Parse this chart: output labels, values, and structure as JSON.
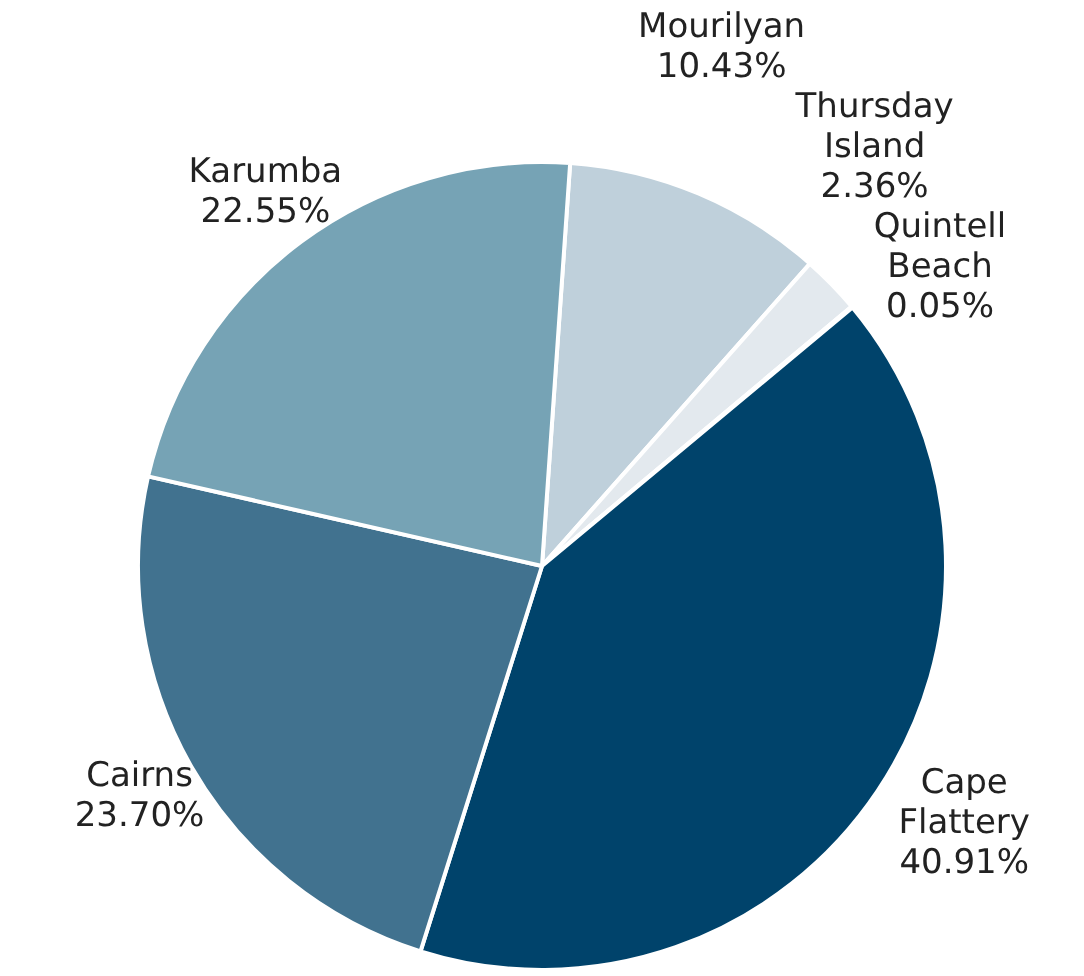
{
  "chart_data": {
    "type": "pie",
    "categories": [
      "Mourilyan",
      "Thursday Island",
      "Quintell Beach",
      "Cape Flattery",
      "Cairns",
      "Karumba"
    ],
    "values": [
      10.43,
      2.36,
      0.05,
      40.91,
      23.7,
      22.55
    ],
    "value_labels": [
      "10.43%",
      "2.36%",
      "0.05%",
      "40.91%",
      "23.70%",
      "22.55%"
    ],
    "colors": [
      "#bfd0db",
      "#e3e9ee",
      "#e3e9ee",
      "#00436b",
      "#41728f",
      "#76a3b5"
    ],
    "legend": false
  }
}
